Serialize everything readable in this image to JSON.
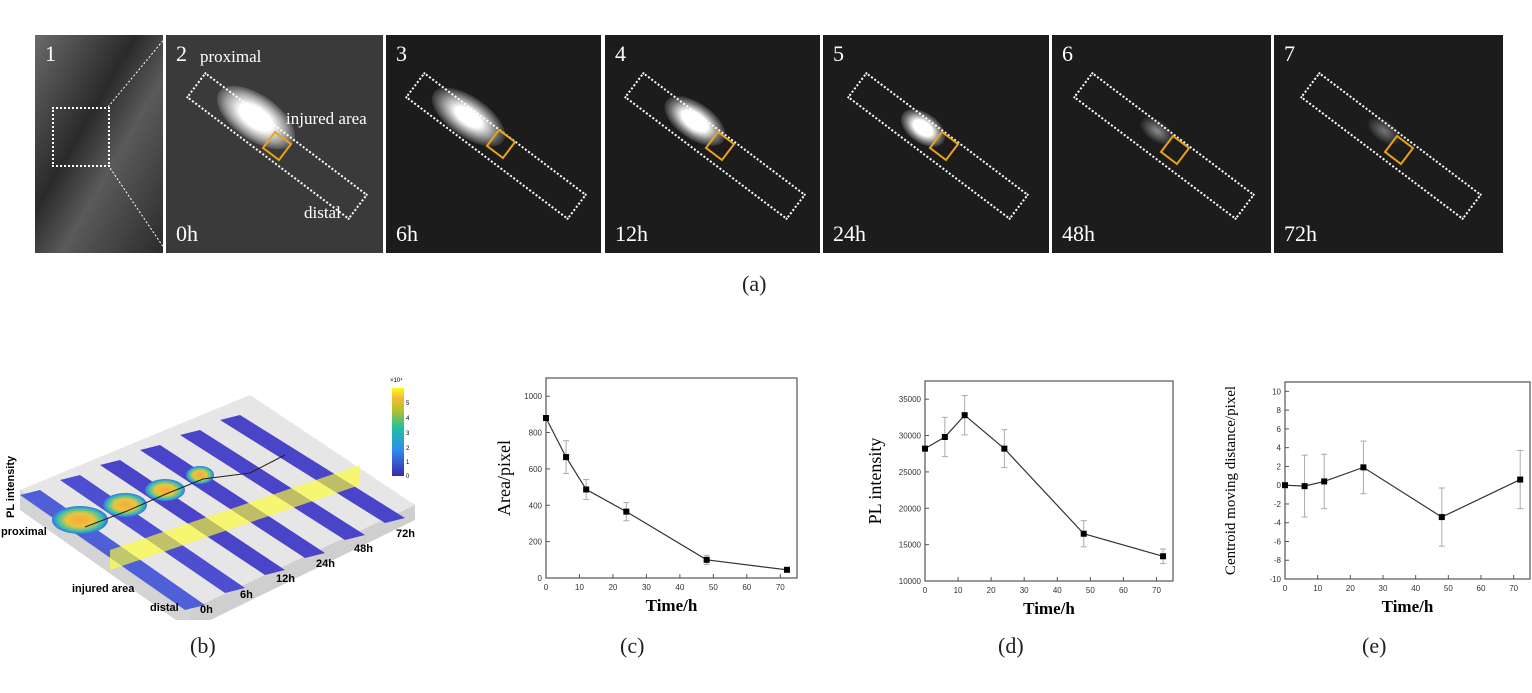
{
  "panel_a": {
    "caption": "(a)",
    "tiles": [
      {
        "num": "1",
        "time": ""
      },
      {
        "num": "2",
        "time": "0h",
        "labels": {
          "proximal": "proximal",
          "injured": "injured area",
          "distal": "distal"
        }
      },
      {
        "num": "3",
        "time": "6h"
      },
      {
        "num": "4",
        "time": "12h"
      },
      {
        "num": "5",
        "time": "24h"
      },
      {
        "num": "6",
        "time": "48h"
      },
      {
        "num": "7",
        "time": "72h"
      }
    ]
  },
  "panel_b": {
    "caption": "(b)",
    "zlabel": "PL intensity",
    "proximal": "proximal",
    "injured": "injured area",
    "distal": "distal",
    "times": [
      "0h",
      "6h",
      "12h",
      "24h",
      "48h",
      "72h"
    ],
    "colorbar": {
      "exponent": "×10⁴",
      "ticks": [
        "5",
        "4",
        "3",
        "2",
        "1",
        "0"
      ]
    }
  },
  "chart_data": [
    {
      "id": "c",
      "caption": "(c)",
      "type": "line",
      "xlabel": "Time/h",
      "ylabel": "Area/pixel",
      "x": [
        0,
        6,
        12,
        24,
        48,
        72
      ],
      "y": [
        880,
        665,
        487,
        365,
        100,
        45
      ],
      "err": [
        0,
        90,
        55,
        50,
        25,
        10
      ],
      "xlim": [
        0,
        75
      ],
      "ylim": [
        0,
        1100
      ],
      "xticks": [
        0,
        10,
        20,
        30,
        40,
        50,
        60,
        70
      ],
      "yticks": [
        0,
        200,
        400,
        600,
        800,
        1000
      ]
    },
    {
      "id": "d",
      "caption": "(d)",
      "type": "line",
      "xlabel": "Time/h",
      "ylabel": "PL intensity",
      "x": [
        0,
        6,
        12,
        24,
        48,
        72
      ],
      "y": [
        28200,
        29800,
        32800,
        28200,
        16500,
        13400
      ],
      "err": [
        0,
        2700,
        2700,
        2600,
        1800,
        1000
      ],
      "xlim": [
        0,
        75
      ],
      "ylim": [
        10000,
        37500
      ],
      "xticks": [
        0,
        10,
        20,
        30,
        40,
        50,
        60,
        70
      ],
      "yticks": [
        10000,
        15000,
        20000,
        25000,
        30000,
        35000
      ]
    },
    {
      "id": "e",
      "caption": "(e)",
      "type": "line",
      "xlabel": "Time/h",
      "ylabel": "Centroid moving distance/pixel",
      "x": [
        0,
        6,
        12,
        24,
        48,
        72
      ],
      "y": [
        0,
        -0.1,
        0.4,
        1.9,
        -3.4,
        0.6
      ],
      "err": [
        0,
        3.3,
        2.9,
        2.8,
        3.1,
        3.1
      ],
      "xlim": [
        0,
        75
      ],
      "ylim": [
        -10,
        11
      ],
      "xticks": [
        0,
        10,
        20,
        30,
        40,
        50,
        60,
        70
      ],
      "yticks": [
        -10,
        -8,
        -6,
        -4,
        -2,
        0,
        2,
        4,
        6,
        8,
        10
      ]
    }
  ]
}
